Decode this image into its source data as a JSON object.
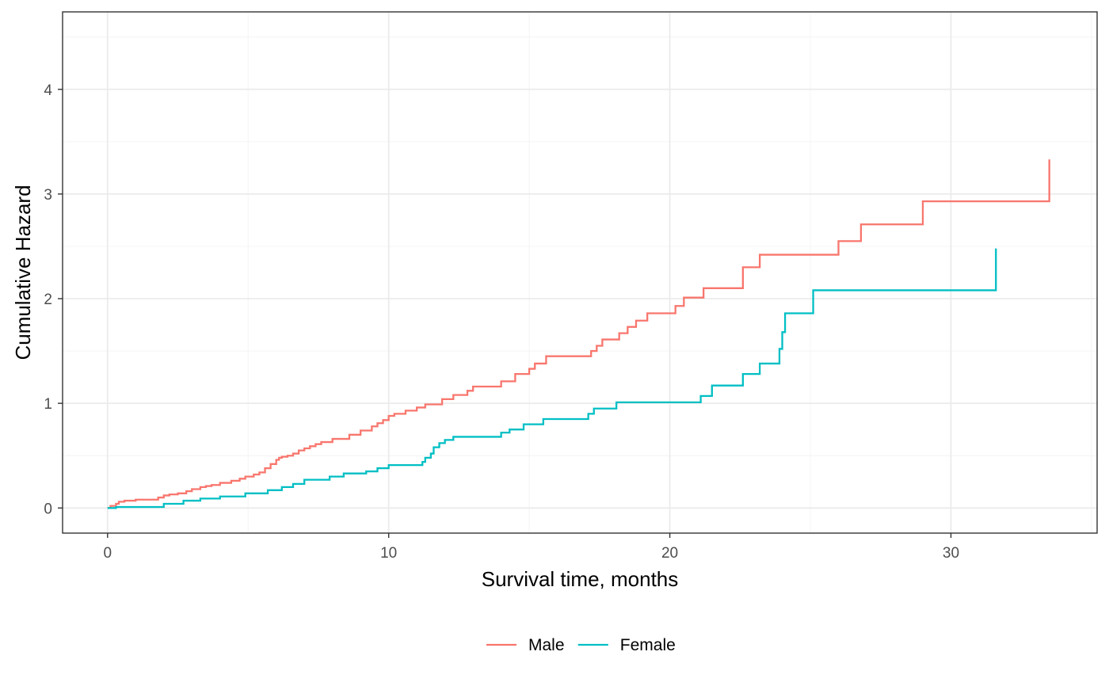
{
  "chart_data": {
    "type": "line",
    "xlabel": "Survival time, months",
    "ylabel": "Cumulative Hazard",
    "xlim": [
      -1.6,
      35.2
    ],
    "ylim": [
      -0.24,
      4.74
    ],
    "x_ticks": [
      0,
      10,
      20,
      30
    ],
    "y_ticks": [
      0,
      1,
      2,
      3,
      4
    ],
    "grid": true,
    "legend_position": "bottom",
    "series": [
      {
        "name": "Male",
        "color": "#F8766D",
        "x": [
          0,
          0.1,
          0.3,
          0.4,
          0.6,
          1.0,
          1.8,
          2.0,
          2.2,
          2.5,
          2.8,
          3.0,
          3.3,
          3.5,
          3.7,
          4.0,
          4.4,
          4.7,
          4.9,
          5.2,
          5.4,
          5.6,
          5.8,
          6.0,
          6.1,
          6.2,
          6.4,
          6.6,
          6.8,
          7.0,
          7.2,
          7.4,
          7.6,
          8.0,
          8.6,
          9.0,
          9.4,
          9.6,
          9.8,
          10.0,
          10.2,
          10.6,
          11.0,
          11.3,
          11.9,
          12.3,
          12.8,
          13.0,
          14.0,
          14.5,
          15.0,
          15.2,
          15.6,
          17.2,
          17.4,
          17.6,
          18.2,
          18.5,
          18.8,
          19.2,
          20.2,
          20.5,
          21.2,
          22.6,
          23.2,
          26.0,
          26.8,
          29.0,
          33.5
        ],
        "y": [
          0,
          0.02,
          0.04,
          0.06,
          0.07,
          0.08,
          0.1,
          0.12,
          0.13,
          0.14,
          0.16,
          0.18,
          0.2,
          0.21,
          0.22,
          0.24,
          0.26,
          0.28,
          0.3,
          0.32,
          0.34,
          0.38,
          0.42,
          0.46,
          0.48,
          0.49,
          0.5,
          0.52,
          0.55,
          0.57,
          0.59,
          0.61,
          0.63,
          0.66,
          0.7,
          0.74,
          0.78,
          0.81,
          0.84,
          0.88,
          0.9,
          0.93,
          0.96,
          0.99,
          1.04,
          1.08,
          1.12,
          1.16,
          1.21,
          1.28,
          1.33,
          1.38,
          1.45,
          1.5,
          1.55,
          1.61,
          1.67,
          1.73,
          1.79,
          1.86,
          1.93,
          2.01,
          2.1,
          2.3,
          2.42,
          2.55,
          2.71,
          2.93,
          3.33
        ]
      },
      {
        "name": "Female",
        "color": "#00BFC4",
        "x": [
          0,
          0.3,
          2.0,
          2.7,
          3.3,
          4.0,
          4.9,
          5.7,
          6.2,
          6.6,
          7.0,
          7.9,
          8.4,
          9.2,
          9.6,
          10.0,
          11.2,
          11.3,
          11.5,
          11.6,
          11.8,
          12.0,
          12.3,
          14.0,
          14.3,
          14.8,
          15.5,
          17.1,
          17.3,
          18.1,
          21.1,
          21.5,
          22.6,
          23.2,
          23.9,
          24.0,
          24.1,
          25.1,
          31.6
        ],
        "y": [
          0,
          0.01,
          0.04,
          0.07,
          0.09,
          0.11,
          0.14,
          0.17,
          0.2,
          0.23,
          0.27,
          0.3,
          0.33,
          0.35,
          0.38,
          0.41,
          0.44,
          0.48,
          0.52,
          0.58,
          0.62,
          0.65,
          0.68,
          0.72,
          0.75,
          0.8,
          0.85,
          0.9,
          0.95,
          1.01,
          1.07,
          1.17,
          1.28,
          1.38,
          1.52,
          1.68,
          1.86,
          2.08,
          2.48
        ]
      }
    ]
  }
}
